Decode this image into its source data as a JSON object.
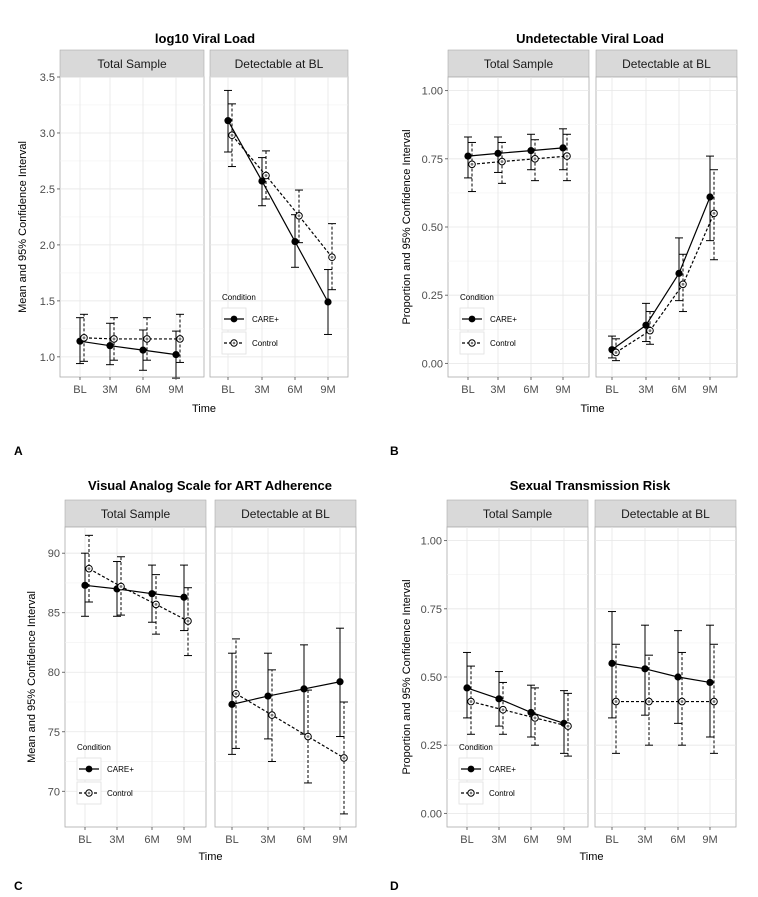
{
  "chart_data": [
    {
      "id": "A",
      "type": "line",
      "title": "log10 Viral Load",
      "panel_letter": "A",
      "ylabel": "Mean and 95% Confidence Interval",
      "xlabel": "Time",
      "categories": [
        "BL",
        "3M",
        "6M",
        "9M"
      ],
      "ylim": [
        0.82,
        3.5
      ],
      "yticks": [
        1.0,
        1.5,
        2.0,
        2.5,
        3.0,
        3.5
      ],
      "ytick_labels": [
        "1.0",
        "1.5",
        "2.0",
        "2.5",
        "3.0",
        "3.5"
      ],
      "legend": {
        "title": "Condition",
        "position": "bottom-left of right facet",
        "labels": [
          "CARE+",
          "Control"
        ]
      },
      "facets": [
        {
          "label": "Total Sample",
          "series": [
            {
              "name": "CARE+",
              "values": [
                1.14,
                1.1,
                1.06,
                1.02
              ],
              "lower": [
                0.94,
                0.93,
                0.88,
                0.81
              ],
              "upper": [
                1.35,
                1.3,
                1.24,
                1.23
              ]
            },
            {
              "name": "Control",
              "values": [
                1.17,
                1.16,
                1.16,
                1.16
              ],
              "lower": [
                0.96,
                0.97,
                0.97,
                0.95
              ],
              "upper": [
                1.38,
                1.35,
                1.35,
                1.38
              ]
            }
          ]
        },
        {
          "label": "Detectable at BL",
          "series": [
            {
              "name": "CARE+",
              "values": [
                3.11,
                2.57,
                2.03,
                1.49
              ],
              "lower": [
                2.83,
                2.35,
                1.8,
                1.2
              ],
              "upper": [
                3.38,
                2.78,
                2.27,
                1.78
              ]
            },
            {
              "name": "Control",
              "values": [
                2.98,
                2.62,
                2.26,
                1.89
              ],
              "lower": [
                2.7,
                2.41,
                2.02,
                1.6
              ],
              "upper": [
                3.26,
                2.84,
                2.49,
                2.19
              ]
            }
          ]
        }
      ]
    },
    {
      "id": "B",
      "type": "line",
      "title": "Undetectable Viral Load",
      "panel_letter": "B",
      "ylabel": "Proportion and 95% Confidence Interval",
      "xlabel": "Time",
      "categories": [
        "BL",
        "3M",
        "6M",
        "9M"
      ],
      "ylim": [
        -0.05,
        1.05
      ],
      "yticks": [
        0.0,
        0.25,
        0.5,
        0.75,
        1.0
      ],
      "ytick_labels": [
        "0.00",
        "0.25",
        "0.50",
        "0.75",
        "1.00"
      ],
      "legend": {
        "title": "Condition",
        "position": "bottom-left of left facet",
        "labels": [
          "CARE+",
          "Control"
        ]
      },
      "facets": [
        {
          "label": "Total Sample",
          "series": [
            {
              "name": "CARE+",
              "values": [
                0.76,
                0.77,
                0.78,
                0.79
              ],
              "lower": [
                0.68,
                0.7,
                0.71,
                0.71
              ],
              "upper": [
                0.83,
                0.83,
                0.84,
                0.86
              ]
            },
            {
              "name": "Control",
              "values": [
                0.73,
                0.74,
                0.75,
                0.76
              ],
              "lower": [
                0.63,
                0.66,
                0.67,
                0.67
              ],
              "upper": [
                0.81,
                0.81,
                0.82,
                0.84
              ]
            }
          ]
        },
        {
          "label": "Detectable at BL",
          "series": [
            {
              "name": "CARE+",
              "values": [
                0.05,
                0.14,
                0.33,
                0.61
              ],
              "lower": [
                0.02,
                0.08,
                0.23,
                0.45
              ],
              "upper": [
                0.1,
                0.22,
                0.46,
                0.76
              ]
            },
            {
              "name": "Control",
              "values": [
                0.04,
                0.12,
                0.29,
                0.55
              ],
              "lower": [
                0.01,
                0.07,
                0.19,
                0.38
              ],
              "upper": [
                0.09,
                0.19,
                0.4,
                0.71
              ]
            }
          ]
        }
      ]
    },
    {
      "id": "C",
      "type": "line",
      "title": "Visual Analog Scale for ART Adherence",
      "panel_letter": "C",
      "ylabel": "Mean and 95% Confidence Interval",
      "xlabel": "Time",
      "categories": [
        "BL",
        "3M",
        "6M",
        "9M"
      ],
      "ylim": [
        67.0,
        92.2
      ],
      "yticks": [
        70,
        75,
        80,
        85,
        90
      ],
      "ytick_labels": [
        "70",
        "75",
        "80",
        "85",
        "90"
      ],
      "legend": {
        "title": "Condition",
        "position": "bottom-left of left facet",
        "labels": [
          "CARE+",
          "Control"
        ]
      },
      "facets": [
        {
          "label": "Total Sample",
          "series": [
            {
              "name": "CARE+",
              "values": [
                87.3,
                87.0,
                86.6,
                86.3
              ],
              "lower": [
                84.7,
                84.7,
                84.2,
                83.5
              ],
              "upper": [
                90.0,
                89.3,
                89.0,
                89.0
              ]
            },
            {
              "name": "Control",
              "values": [
                88.7,
                87.2,
                85.7,
                84.3
              ],
              "lower": [
                85.9,
                84.8,
                83.2,
                81.4
              ],
              "upper": [
                91.5,
                89.7,
                88.2,
                87.1
              ]
            }
          ]
        },
        {
          "label": "Detectable at BL",
          "series": [
            {
              "name": "CARE+",
              "values": [
                77.3,
                78.0,
                78.6,
                79.2
              ],
              "lower": [
                73.1,
                74.4,
                74.8,
                74.6
              ],
              "upper": [
                81.6,
                81.6,
                82.3,
                83.7
              ]
            },
            {
              "name": "Control",
              "values": [
                78.2,
                76.4,
                74.6,
                72.8
              ],
              "lower": [
                73.6,
                72.5,
                70.7,
                68.1
              ],
              "upper": [
                82.8,
                80.2,
                78.5,
                77.5
              ]
            }
          ]
        }
      ]
    },
    {
      "id": "D",
      "type": "line",
      "title": "Sexual Transmission Risk",
      "panel_letter": "D",
      "ylabel": "Proportion and 95% Confidence Interval",
      "xlabel": "Time",
      "categories": [
        "BL",
        "3M",
        "6M",
        "9M"
      ],
      "ylim": [
        -0.05,
        1.05
      ],
      "yticks": [
        0.0,
        0.25,
        0.5,
        0.75,
        1.0
      ],
      "ytick_labels": [
        "0.00",
        "0.25",
        "0.50",
        "0.75",
        "1.00"
      ],
      "legend": {
        "title": "Condition",
        "position": "bottom-left of left facet",
        "labels": [
          "CARE+",
          "Control"
        ]
      },
      "facets": [
        {
          "label": "Total Sample",
          "series": [
            {
              "name": "CARE+",
              "values": [
                0.46,
                0.42,
                0.37,
                0.33
              ],
              "lower": [
                0.35,
                0.32,
                0.28,
                0.22
              ],
              "upper": [
                0.59,
                0.52,
                0.47,
                0.45
              ]
            },
            {
              "name": "Control",
              "values": [
                0.41,
                0.38,
                0.35,
                0.32
              ],
              "lower": [
                0.29,
                0.29,
                0.25,
                0.21
              ],
              "upper": [
                0.54,
                0.48,
                0.46,
                0.44
              ]
            }
          ]
        },
        {
          "label": "Detectable at BL",
          "series": [
            {
              "name": "CARE+",
              "values": [
                0.55,
                0.53,
                0.5,
                0.48
              ],
              "lower": [
                0.35,
                0.36,
                0.33,
                0.28
              ],
              "upper": [
                0.74,
                0.69,
                0.67,
                0.69
              ]
            },
            {
              "name": "Control",
              "values": [
                0.41,
                0.41,
                0.41,
                0.41
              ],
              "lower": [
                0.22,
                0.25,
                0.25,
                0.22
              ],
              "upper": [
                0.62,
                0.58,
                0.59,
                0.62
              ]
            }
          ]
        }
      ]
    }
  ]
}
